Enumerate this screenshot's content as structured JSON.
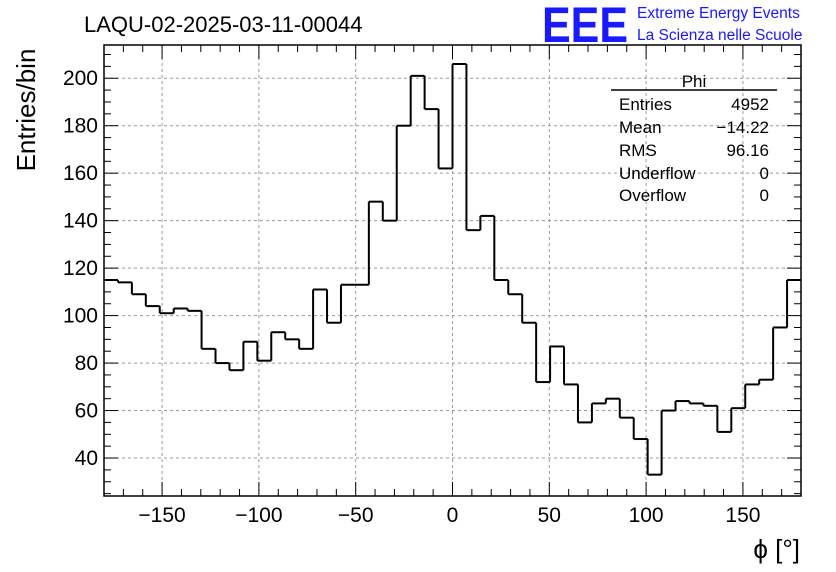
{
  "title": "LAQU-02-2025-03-11-00044",
  "branding": {
    "logo": "EEE",
    "line1": "Extreme Energy Events",
    "line2": "La Scienza nelle Scuole",
    "color": "#1a1aff"
  },
  "stats": {
    "name": "Phi",
    "rows": [
      {
        "label": "Entries",
        "value": "4952"
      },
      {
        "label": "Mean",
        "value": "−14.22"
      },
      {
        "label": "RMS",
        "value": "96.16"
      },
      {
        "label": "Underflow",
        "value": "0"
      },
      {
        "label": "Overflow",
        "value": "0"
      }
    ]
  },
  "chart_data": {
    "type": "histogram",
    "title": "LAQU-02-2025-03-11-00044",
    "xlabel": "ϕ [°]",
    "ylabel": "Entries/bin",
    "xlim": [
      -180,
      180
    ],
    "ylim": [
      24,
      214
    ],
    "grid": true,
    "bin_width": 7.2,
    "x_ticks": [
      -150,
      -100,
      -50,
      0,
      50,
      100,
      150
    ],
    "x_tick_labels": [
      "−150",
      "−100",
      "−50",
      "0",
      "50",
      "100",
      "150"
    ],
    "y_ticks": [
      40,
      60,
      80,
      100,
      120,
      140,
      160,
      180,
      200
    ],
    "y_tick_labels": [
      "40",
      "60",
      "80",
      "100",
      "120",
      "140",
      "160",
      "180",
      "200"
    ],
    "bin_edges_start": -180,
    "values": [
      115,
      114,
      109,
      104,
      101,
      103,
      102,
      86,
      80,
      77,
      89,
      81,
      93,
      90,
      86,
      111,
      97,
      113,
      113,
      148,
      140,
      180,
      201,
      187,
      162,
      206,
      136,
      142,
      115,
      109,
      97,
      72,
      87,
      71,
      55,
      63,
      65,
      57,
      48,
      33,
      60,
      64,
      63,
      62,
      51,
      61,
      71,
      73,
      95,
      115
    ],
    "line_color": "#000000"
  }
}
